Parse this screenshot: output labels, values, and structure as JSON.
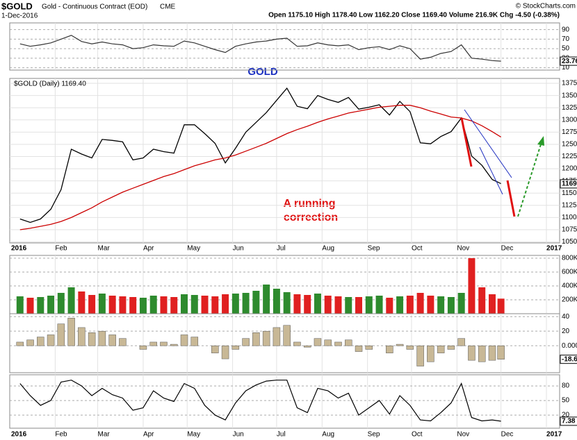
{
  "header": {
    "symbol": "$GOLD",
    "name": "Gold - Continuous Contract (EOD)",
    "exchange": "CME",
    "date": "1-Dec-2016",
    "quote": "Open 1175.10  High 1178.40  Low 1162.20  Close 1169.40  Volume 216.9K  Chg -4.50 (-0.38%)",
    "credit": "© StockCharts.com"
  },
  "chart_data": [
    {
      "type": "line",
      "color": "#333333",
      "ylim": [
        5,
        104
      ],
      "yticks": [
        90,
        70,
        50,
        30,
        10
      ],
      "last": 23.76,
      "values": [
        60,
        55,
        58,
        62,
        70,
        78,
        65,
        60,
        64,
        60,
        58,
        50,
        52,
        58,
        56,
        55,
        66,
        62,
        55,
        48,
        42,
        55,
        60,
        64,
        66,
        70,
        72,
        55,
        56,
        62,
        58,
        56,
        58,
        48,
        52,
        54,
        48,
        56,
        50,
        28,
        32,
        40,
        44,
        58,
        30,
        28,
        25,
        23.76
      ]
    },
    {
      "type": "line",
      "title": "GOLD",
      "annotation": [
        "A running",
        "correction"
      ],
      "grid": true,
      "last": 1169,
      "x": [
        8,
        15,
        22,
        29,
        36,
        43,
        50,
        57,
        64,
        71,
        78,
        85,
        92,
        99,
        106,
        113,
        120,
        127,
        134,
        141,
        148,
        155,
        162,
        169,
        176,
        183,
        190,
        197,
        204,
        211,
        218,
        225,
        232,
        239,
        246,
        253,
        260,
        267,
        274,
        281,
        288,
        295,
        302,
        309,
        316,
        323,
        330,
        336
      ],
      "xlim": [
        1,
        376
      ],
      "xticks": [
        {
          "value": 1,
          "label": "2016"
        },
        {
          "value": 32,
          "label": "Feb"
        },
        {
          "value": 61,
          "label": "Mar"
        },
        {
          "value": 92,
          "label": "Apr"
        },
        {
          "value": 122,
          "label": "May"
        },
        {
          "value": 153,
          "label": "Jun"
        },
        {
          "value": 183,
          "label": "Jul"
        },
        {
          "value": 214,
          "label": "Aug"
        },
        {
          "value": 245,
          "label": "Sep"
        },
        {
          "value": 275,
          "label": "Oct"
        },
        {
          "value": 306,
          "label": "Nov"
        },
        {
          "value": 336,
          "label": "Dec"
        },
        {
          "value": 367,
          "label": "2017"
        }
      ],
      "ylim": [
        1048,
        1385
      ],
      "yticks": [
        1050,
        1075,
        1100,
        1125,
        1150,
        1175,
        1200,
        1225,
        1250,
        1275,
        1300,
        1325,
        1350,
        1375
      ],
      "series": [
        {
          "name": "$GOLD (Daily) 1169.40",
          "color": "#000000",
          "values": [
            1097,
            1090,
            1097,
            1117,
            1157,
            1240,
            1230,
            1222,
            1260,
            1258,
            1255,
            1218,
            1222,
            1240,
            1235,
            1232,
            1290,
            1290,
            1272,
            1252,
            1212,
            1242,
            1275,
            1295,
            1315,
            1340,
            1365,
            1328,
            1323,
            1350,
            1342,
            1336,
            1346,
            1322,
            1326,
            1331,
            1310,
            1338,
            1317,
            1253,
            1251,
            1266,
            1276,
            1304,
            1226,
            1207,
            1178,
            1169.4
          ]
        },
        {
          "color": "#cc0000",
          "values": [
            1075,
            1078,
            1082,
            1086,
            1092,
            1100,
            1110,
            1120,
            1132,
            1142,
            1152,
            1160,
            1168,
            1176,
            1184,
            1190,
            1198,
            1206,
            1212,
            1218,
            1222,
            1228,
            1236,
            1244,
            1252,
            1262,
            1272,
            1280,
            1287,
            1295,
            1302,
            1308,
            1314,
            1318,
            1322,
            1326,
            1328,
            1330,
            1330,
            1325,
            1318,
            1312,
            1306,
            1304,
            1298,
            1288,
            1276,
            1265
          ]
        }
      ]
    },
    {
      "type": "bar",
      "up_color": "#2e8b2e",
      "down_color": "#e02020",
      "ylim": [
        0,
        840000
      ],
      "yticks": [
        {
          "value": 800000,
          "label": "800K"
        },
        {
          "value": 600000,
          "label": "600K"
        },
        {
          "value": 400000,
          "label": "400K"
        },
        {
          "value": 200000,
          "label": "200K"
        }
      ],
      "values": [
        250000,
        230000,
        240000,
        260000,
        300000,
        380000,
        320000,
        270000,
        290000,
        260000,
        250000,
        240000,
        230000,
        260000,
        250000,
        240000,
        280000,
        270000,
        260000,
        250000,
        280000,
        290000,
        300000,
        330000,
        420000,
        360000,
        310000,
        280000,
        270000,
        290000,
        260000,
        250000,
        240000,
        240000,
        250000,
        260000,
        230000,
        250000,
        260000,
        300000,
        260000,
        250000,
        240000,
        300000,
        800000,
        380000,
        280000,
        216900
      ]
    },
    {
      "type": "bar",
      "color": "#c8b896",
      "ylim": [
        -37,
        44
      ],
      "yticks": [
        40,
        20,
        {
          "value": 0,
          "label": "0.000"
        }
      ],
      "last": -18.6,
      "values": [
        5,
        8,
        12,
        15,
        30,
        38,
        25,
        18,
        20,
        15,
        10,
        0,
        -5,
        5,
        5,
        2,
        15,
        12,
        0,
        -10,
        -18,
        -5,
        10,
        18,
        20,
        25,
        28,
        5,
        -2,
        10,
        8,
        5,
        8,
        -8,
        -5,
        0,
        -10,
        2,
        -5,
        -28,
        -22,
        -10,
        -5,
        10,
        -20,
        -22,
        -20,
        -18.6
      ]
    },
    {
      "type": "line",
      "color": "#000000",
      "ylim": [
        -7,
        103
      ],
      "yticks": [
        80,
        50,
        20
      ],
      "last": 7.38,
      "values": [
        85,
        60,
        40,
        50,
        88,
        92,
        80,
        60,
        75,
        62,
        55,
        30,
        35,
        70,
        55,
        48,
        85,
        75,
        40,
        20,
        10,
        45,
        70,
        82,
        90,
        92,
        92,
        35,
        25,
        75,
        70,
        55,
        65,
        20,
        35,
        50,
        22,
        60,
        40,
        10,
        8,
        25,
        45,
        85,
        15,
        8,
        10,
        7.38
      ]
    }
  ]
}
